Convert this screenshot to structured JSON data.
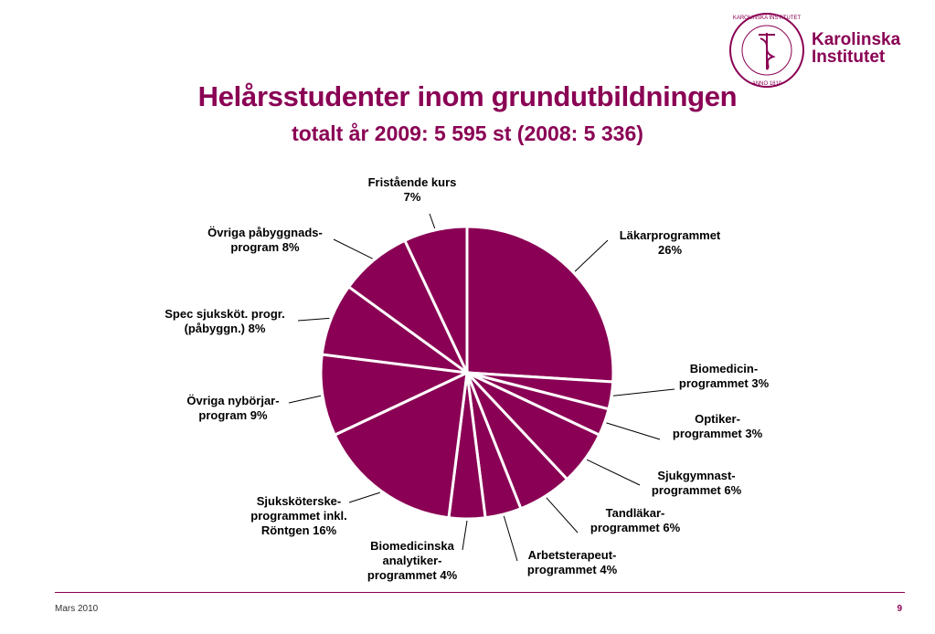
{
  "logo": {
    "text_line1": "Karolinska",
    "text_line2": "Institutet",
    "seal_text": "KAROLINSKA INSTITUTET · ANNO 1810"
  },
  "header": {
    "title": "Helårsstudenter inom grundutbildningen",
    "subtitle": "totalt år 2009: 5 595 st  (2008: 5 336)"
  },
  "chart_data": {
    "type": "pie",
    "colors": {
      "slice": "#8a0054",
      "border": "#ffffff",
      "leader": "#000000"
    },
    "slices": [
      {
        "label_lines": [
          "Läkarprogrammet",
          "26%"
        ],
        "value": 26
      },
      {
        "label_lines": [
          "Biomedicin-",
          "programmet 3%"
        ],
        "value": 3
      },
      {
        "label_lines": [
          "Optiker-",
          "programmet 3%"
        ],
        "value": 3
      },
      {
        "label_lines": [
          "Sjukgymnast-",
          "programmet 6%"
        ],
        "value": 6
      },
      {
        "label_lines": [
          "Tandläkar-",
          "programmet 6%"
        ],
        "value": 6
      },
      {
        "label_lines": [
          "Arbetsterapeut-",
          "programmet 4%"
        ],
        "value": 4
      },
      {
        "label_lines": [
          "Biomedicinska",
          "analytiker-",
          "programmet 4%"
        ],
        "value": 4
      },
      {
        "label_lines": [
          "Sjuksköterske-",
          "programmet inkl.",
          "Röntgen 16%"
        ],
        "value": 16
      },
      {
        "label_lines": [
          "Övriga nybörjar-",
          "program 9%"
        ],
        "value": 9
      },
      {
        "label_lines": [
          "Spec sjuksköt. progr.",
          "(påbyggn.) 8%"
        ],
        "value": 8
      },
      {
        "label_lines": [
          "Övriga påbyggnads-",
          "program 8%"
        ],
        "value": 8
      },
      {
        "label_lines": [
          "Fristående kurs",
          "7%"
        ],
        "value": 7
      }
    ]
  },
  "footer": {
    "left": "Mars 2010",
    "page": "9"
  }
}
